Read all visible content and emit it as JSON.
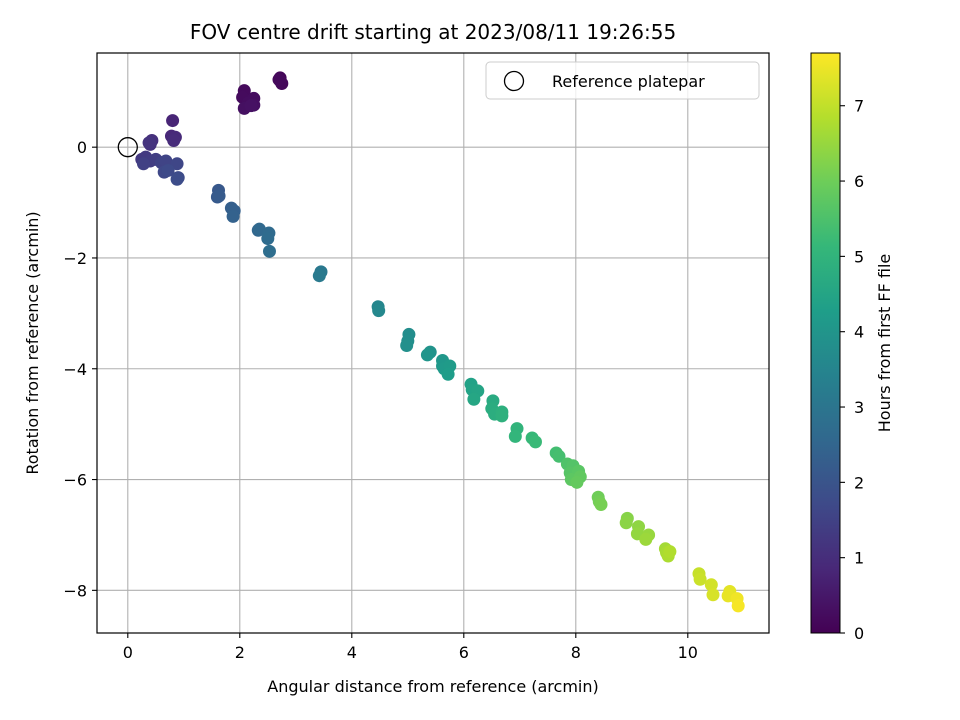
{
  "chart_data": {
    "type": "scatter",
    "title": "FOV centre drift starting at 2023/08/11 19:26:55",
    "xlabel": "Angular distance from reference (arcmin)",
    "ylabel": "Rotation from reference (arcmin)",
    "colorbar_label": "Hours from first FF file",
    "xlim": [
      -0.55,
      11.45
    ],
    "ylim": [
      -8.77,
      1.7
    ],
    "clim": [
      0,
      7.7
    ],
    "colormap": "viridis",
    "grid": true,
    "legend_position": "top-right",
    "x_ticks": [
      0,
      2,
      4,
      6,
      8,
      10
    ],
    "y_ticks": [
      0,
      -2,
      -4,
      -6,
      -8
    ],
    "colorbar_ticks": [
      0,
      1,
      2,
      3,
      4,
      5,
      6,
      7
    ],
    "reference": {
      "name": "Reference platepar",
      "x": 0,
      "y": 0
    },
    "points": [
      [
        2.72,
        1.25,
        0.1
      ],
      [
        2.72,
        1.2,
        0.12
      ],
      [
        2.75,
        1.15,
        0.15
      ],
      [
        2.7,
        1.22,
        0.17
      ],
      [
        2.08,
        1.02,
        0.2
      ],
      [
        2.05,
        0.9,
        0.22
      ],
      [
        2.25,
        0.88,
        0.25
      ],
      [
        2.15,
        0.8,
        0.27
      ],
      [
        2.25,
        0.76,
        0.3
      ],
      [
        2.08,
        0.7,
        0.32
      ],
      [
        2.2,
        0.75,
        0.35
      ],
      [
        0.8,
        0.48,
        0.8
      ],
      [
        0.78,
        0.2,
        0.85
      ],
      [
        0.85,
        0.18,
        0.9
      ],
      [
        0.82,
        0.12,
        0.95
      ],
      [
        0.43,
        0.12,
        1.05
      ],
      [
        0.4,
        0.05,
        1.1
      ],
      [
        0.38,
        0.08,
        1.15
      ],
      [
        0.25,
        -0.22,
        1.25
      ],
      [
        0.32,
        -0.18,
        1.3
      ],
      [
        0.4,
        -0.25,
        1.35
      ],
      [
        0.5,
        -0.22,
        1.4
      ],
      [
        0.28,
        -0.3,
        1.45
      ],
      [
        0.6,
        -0.28,
        1.5
      ],
      [
        0.68,
        -0.25,
        1.55
      ],
      [
        0.88,
        -0.3,
        1.6
      ],
      [
        0.65,
        -0.45,
        1.65
      ],
      [
        0.72,
        -0.42,
        1.7
      ],
      [
        0.9,
        -0.55,
        1.75
      ],
      [
        0.88,
        -0.58,
        1.8
      ],
      [
        1.62,
        -0.78,
        2.1
      ],
      [
        1.6,
        -0.9,
        2.15
      ],
      [
        1.63,
        -0.88,
        2.2
      ],
      [
        1.85,
        -1.1,
        2.3
      ],
      [
        1.9,
        -1.15,
        2.35
      ],
      [
        1.88,
        -1.25,
        2.4
      ],
      [
        2.33,
        -1.5,
        2.55
      ],
      [
        2.35,
        -1.48,
        2.6
      ],
      [
        2.52,
        -1.55,
        2.65
      ],
      [
        2.5,
        -1.65,
        2.7
      ],
      [
        2.53,
        -1.88,
        2.75
      ],
      [
        3.45,
        -2.25,
        3.1
      ],
      [
        3.42,
        -2.32,
        3.15
      ],
      [
        4.47,
        -2.88,
        3.55
      ],
      [
        4.48,
        -2.95,
        3.6
      ],
      [
        5.02,
        -3.38,
        3.75
      ],
      [
        5.0,
        -3.5,
        3.8
      ],
      [
        4.98,
        -3.58,
        3.85
      ],
      [
        5.4,
        -3.7,
        3.95
      ],
      [
        5.35,
        -3.75,
        4.0
      ],
      [
        5.62,
        -3.85,
        4.05
      ],
      [
        5.62,
        -3.95,
        4.1
      ],
      [
        5.65,
        -4.0,
        4.15
      ],
      [
        5.75,
        -3.95,
        4.2
      ],
      [
        5.72,
        -4.1,
        4.25
      ],
      [
        6.13,
        -4.28,
        4.4
      ],
      [
        6.15,
        -4.38,
        4.45
      ],
      [
        6.25,
        -4.4,
        4.5
      ],
      [
        6.18,
        -4.55,
        4.55
      ],
      [
        6.52,
        -4.58,
        4.7
      ],
      [
        6.5,
        -4.72,
        4.75
      ],
      [
        6.55,
        -4.82,
        4.8
      ],
      [
        6.68,
        -4.78,
        4.85
      ],
      [
        6.68,
        -4.85,
        4.9
      ],
      [
        6.95,
        -5.08,
        5.0
      ],
      [
        6.92,
        -5.22,
        5.05
      ],
      [
        7.22,
        -5.25,
        5.15
      ],
      [
        7.28,
        -5.32,
        5.2
      ],
      [
        7.65,
        -5.52,
        5.35
      ],
      [
        7.7,
        -5.58,
        5.4
      ],
      [
        7.85,
        -5.72,
        5.55
      ],
      [
        7.95,
        -5.75,
        5.6
      ],
      [
        7.9,
        -5.88,
        5.65
      ],
      [
        8.05,
        -5.85,
        5.7
      ],
      [
        7.92,
        -6.0,
        5.75
      ],
      [
        8.08,
        -5.95,
        5.8
      ],
      [
        8.02,
        -6.05,
        5.85
      ],
      [
        8.4,
        -6.32,
        6.0
      ],
      [
        8.42,
        -6.4,
        6.05
      ],
      [
        8.45,
        -6.45,
        6.1
      ],
      [
        8.92,
        -6.7,
        6.3
      ],
      [
        8.9,
        -6.78,
        6.35
      ],
      [
        9.12,
        -6.85,
        6.4
      ],
      [
        9.1,
        -6.98,
        6.45
      ],
      [
        9.3,
        -7.0,
        6.5
      ],
      [
        9.25,
        -7.08,
        6.55
      ],
      [
        9.6,
        -7.25,
        6.65
      ],
      [
        9.62,
        -7.32,
        6.7
      ],
      [
        9.65,
        -7.38,
        6.75
      ],
      [
        9.68,
        -7.3,
        6.8
      ],
      [
        10.2,
        -7.7,
        7.05
      ],
      [
        10.22,
        -7.8,
        7.1
      ],
      [
        10.42,
        -7.9,
        7.2
      ],
      [
        10.45,
        -8.08,
        7.25
      ],
      [
        10.75,
        -8.02,
        7.4
      ],
      [
        10.72,
        -8.1,
        7.45
      ],
      [
        10.88,
        -8.15,
        7.55
      ],
      [
        10.9,
        -8.28,
        7.62
      ]
    ]
  }
}
